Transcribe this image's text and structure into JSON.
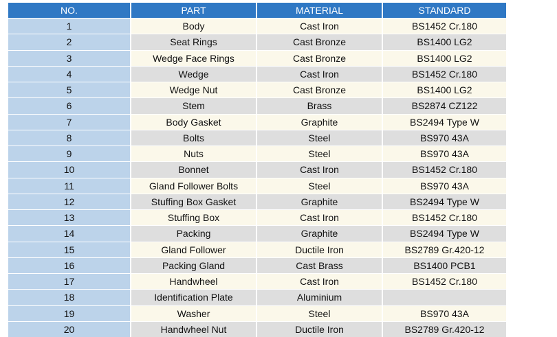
{
  "headers": {
    "no": "NO.",
    "part": "PART",
    "material": "MATERIAL",
    "standard": "STANDARD"
  },
  "rows": [
    {
      "no": "1",
      "part": "Body",
      "material": "Cast Iron",
      "standard": "BS1452 Cr.180"
    },
    {
      "no": "2",
      "part": "Seat Rings",
      "material": "Cast Bronze",
      "standard": "BS1400 LG2"
    },
    {
      "no": "3",
      "part": "Wedge Face Rings",
      "material": "Cast Bronze",
      "standard": "BS1400 LG2"
    },
    {
      "no": "4",
      "part": "Wedge",
      "material": "Cast Iron",
      "standard": "BS1452 Cr.180"
    },
    {
      "no": "5",
      "part": "Wedge Nut",
      "material": "Cast Bronze",
      "standard": "BS1400 LG2"
    },
    {
      "no": "6",
      "part": "Stem",
      "material": "Brass",
      "standard": "BS2874 CZ122"
    },
    {
      "no": "7",
      "part": "Body Gasket",
      "material": "Graphite",
      "standard": "BS2494 Type W"
    },
    {
      "no": "8",
      "part": "Bolts",
      "material": "Steel",
      "standard": "BS970 43A"
    },
    {
      "no": "9",
      "part": "Nuts",
      "material": "Steel",
      "standard": "BS970 43A"
    },
    {
      "no": "10",
      "part": "Bonnet",
      "material": "Cast Iron",
      "standard": "BS1452 Cr.180"
    },
    {
      "no": "11",
      "part": "Gland Follower Bolts",
      "material": "Steel",
      "standard": "BS970 43A"
    },
    {
      "no": "12",
      "part": "Stuffing Box Gasket",
      "material": "Graphite",
      "standard": "BS2494 Type W"
    },
    {
      "no": "13",
      "part": "Stuffing Box",
      "material": "Cast Iron",
      "standard": "BS1452 Cr.180"
    },
    {
      "no": "14",
      "part": "Packing",
      "material": "Graphite",
      "standard": "BS2494 Type W"
    },
    {
      "no": "15",
      "part": "Gland Follower",
      "material": "Ductile Iron",
      "standard": "BS2789 Gr.420-12"
    },
    {
      "no": "16",
      "part": "Packing Gland",
      "material": "Cast Brass",
      "standard": "BS1400 PCB1"
    },
    {
      "no": "17",
      "part": "Handwheel",
      "material": "Cast Iron",
      "standard": "BS1452 Cr.180"
    },
    {
      "no": "18",
      "part": "Identification Plate",
      "material": "Aluminium",
      "standard": ""
    },
    {
      "no": "19",
      "part": "Washer",
      "material": "Steel",
      "standard": "BS970 43A"
    },
    {
      "no": "20",
      "part": "Handwheel Nut",
      "material": "Ductile Iron",
      "standard": "BS2789 Gr.420-12"
    }
  ],
  "colors": {
    "header_bg": "#2f78c4",
    "number_col_bg": "#bcd3ea",
    "row_light_bg": "#fbf8ea",
    "row_dark_bg": "#dedede"
  }
}
